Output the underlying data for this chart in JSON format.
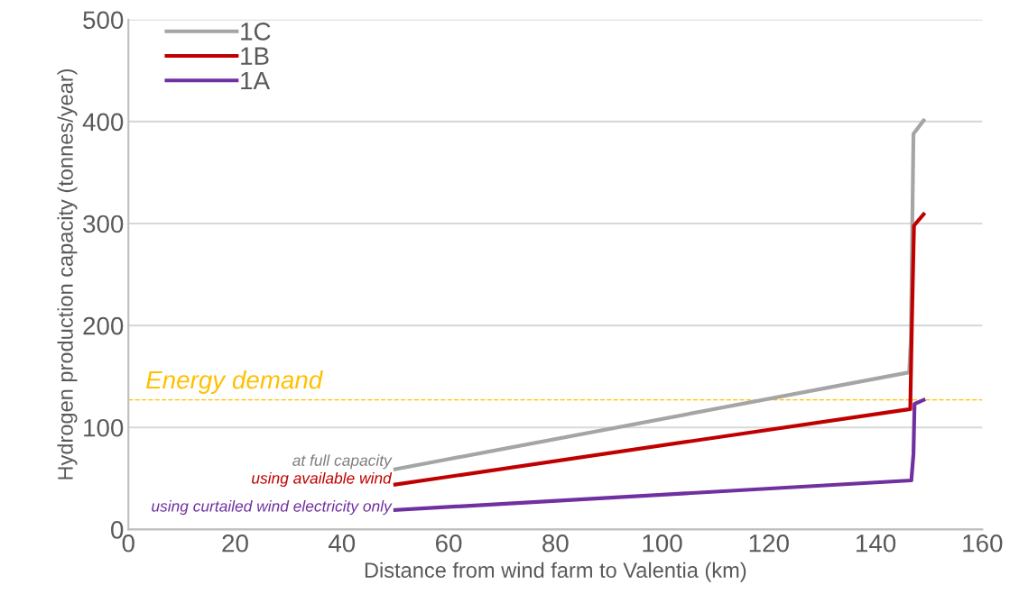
{
  "chart_data": {
    "type": "line",
    "xlabel": "Distance from wind farm to Valentia (km)",
    "ylabel": "Hydrogen production capacity (tonnes/year)",
    "xlim": [
      0,
      160
    ],
    "xticks": [
      0,
      20,
      40,
      60,
      80,
      100,
      120,
      140,
      160
    ],
    "ylim": [
      0,
      500
    ],
    "yticks": [
      0,
      100,
      200,
      300,
      400,
      500
    ],
    "grid": "y",
    "legend": "top left",
    "marker": "none",
    "line_style": "solid",
    "series": [
      {
        "name": "1C",
        "color": "#a5a5a5",
        "x": [
          50,
          146.3,
          146.6,
          147.1,
          149
        ],
        "values": [
          59,
          154,
          186,
          388,
          401
        ]
      },
      {
        "name": "1B",
        "color": "#c00000",
        "x": [
          50,
          146.5,
          146.8,
          147.2,
          149
        ],
        "values": [
          44,
          118,
          201,
          298,
          309
        ]
      },
      {
        "name": "1A",
        "color": "#7030a0",
        "x": [
          50,
          146.7,
          147.1,
          147.3,
          149
        ],
        "values": [
          19,
          48,
          74,
          123,
          127
        ]
      }
    ],
    "ref_lines": [
      {
        "axis": "y",
        "value": 127,
        "label": "Energy demand",
        "color": "#ffc000",
        "line_style": "dashed"
      }
    ],
    "annotations": [
      "at full capacity",
      "using available wind",
      "using curtailed wind electricity only"
    ]
  }
}
